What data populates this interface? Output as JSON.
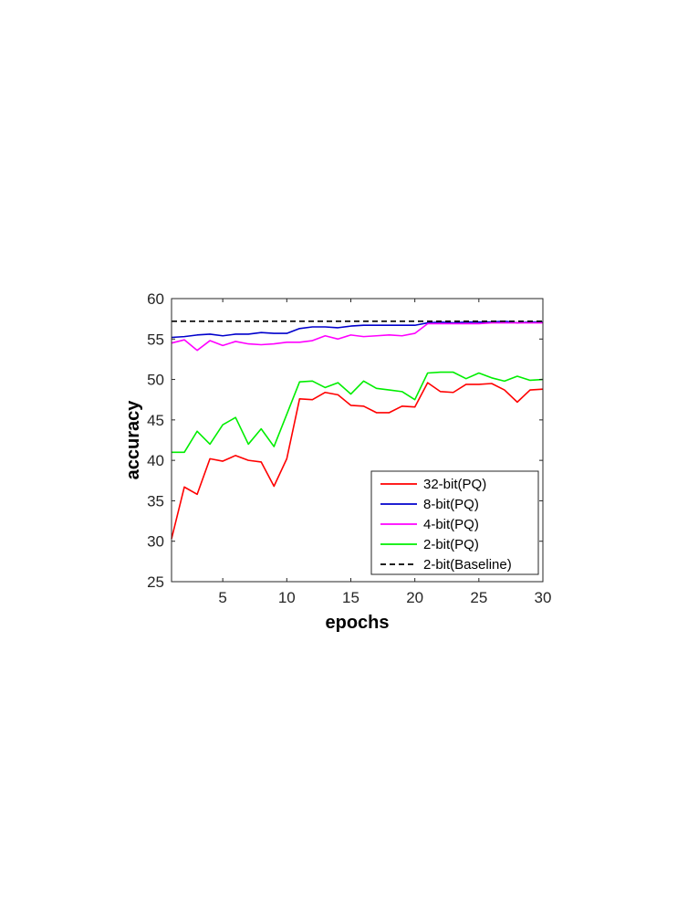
{
  "chart_data": {
    "type": "line",
    "xlabel": "epochs",
    "ylabel": "accuracy",
    "xlim": [
      1,
      30
    ],
    "ylim": [
      25,
      60
    ],
    "xticks": [
      5,
      10,
      15,
      20,
      25,
      30
    ],
    "yticks": [
      25,
      30,
      35,
      40,
      45,
      50,
      55,
      60
    ],
    "grid": false,
    "legend_position": "bottom-right",
    "x": [
      1,
      2,
      3,
      4,
      5,
      6,
      7,
      8,
      9,
      10,
      11,
      12,
      13,
      14,
      15,
      16,
      17,
      18,
      19,
      20,
      21,
      22,
      23,
      24,
      25,
      26,
      27,
      28,
      29,
      30
    ],
    "series": [
      {
        "name": "32-bit(PQ)",
        "color": "#ff0000",
        "dash": "solid",
        "values": [
          30.3,
          36.7,
          35.8,
          40.2,
          39.9,
          40.6,
          40.0,
          39.8,
          36.8,
          40.2,
          47.6,
          47.5,
          48.4,
          48.1,
          46.8,
          46.7,
          45.9,
          45.9,
          46.7,
          46.6,
          49.6,
          48.5,
          48.4,
          49.4,
          49.4,
          49.5,
          48.7,
          47.2,
          48.7,
          48.8
        ]
      },
      {
        "name": "8-bit(PQ)",
        "color": "#0000cc",
        "dash": "solid",
        "values": [
          55.2,
          55.3,
          55.5,
          55.6,
          55.4,
          55.6,
          55.6,
          55.8,
          55.7,
          55.7,
          56.3,
          56.5,
          56.5,
          56.4,
          56.6,
          56.7,
          56.7,
          56.7,
          56.7,
          56.7,
          57.0,
          57.1,
          57.0,
          57.1,
          57.1,
          57.1,
          57.2,
          57.0,
          57.1,
          57.1
        ]
      },
      {
        "name": "4-bit(PQ)",
        "color": "#ff00ff",
        "dash": "solid",
        "values": [
          54.5,
          54.9,
          53.6,
          54.8,
          54.2,
          54.7,
          54.4,
          54.3,
          54.4,
          54.6,
          54.6,
          54.8,
          55.4,
          55.0,
          55.5,
          55.3,
          55.4,
          55.5,
          55.4,
          55.7,
          56.9,
          56.9,
          56.9,
          56.9,
          56.9,
          57.0,
          57.0,
          57.0,
          57.0,
          57.0
        ]
      },
      {
        "name": "2-bit(PQ)",
        "color": "#00ee00",
        "dash": "solid",
        "values": [
          41.0,
          41.0,
          43.6,
          42.0,
          44.4,
          45.3,
          42.0,
          43.9,
          41.7,
          45.7,
          49.7,
          49.8,
          49.0,
          49.6,
          48.2,
          49.8,
          48.9,
          48.7,
          48.5,
          47.5,
          50.8,
          50.9,
          50.9,
          50.1,
          50.8,
          50.2,
          49.8,
          50.4,
          49.9,
          50.0
        ]
      },
      {
        "name": "2-bit(Baseline)",
        "color": "#000000",
        "dash": "dashed",
        "values": [
          57.2,
          57.2,
          57.2,
          57.2,
          57.2,
          57.2,
          57.2,
          57.2,
          57.2,
          57.2,
          57.2,
          57.2,
          57.2,
          57.2,
          57.2,
          57.2,
          57.2,
          57.2,
          57.2,
          57.2,
          57.2,
          57.2,
          57.2,
          57.2,
          57.2,
          57.2,
          57.2,
          57.2,
          57.2,
          57.2
        ]
      }
    ]
  }
}
